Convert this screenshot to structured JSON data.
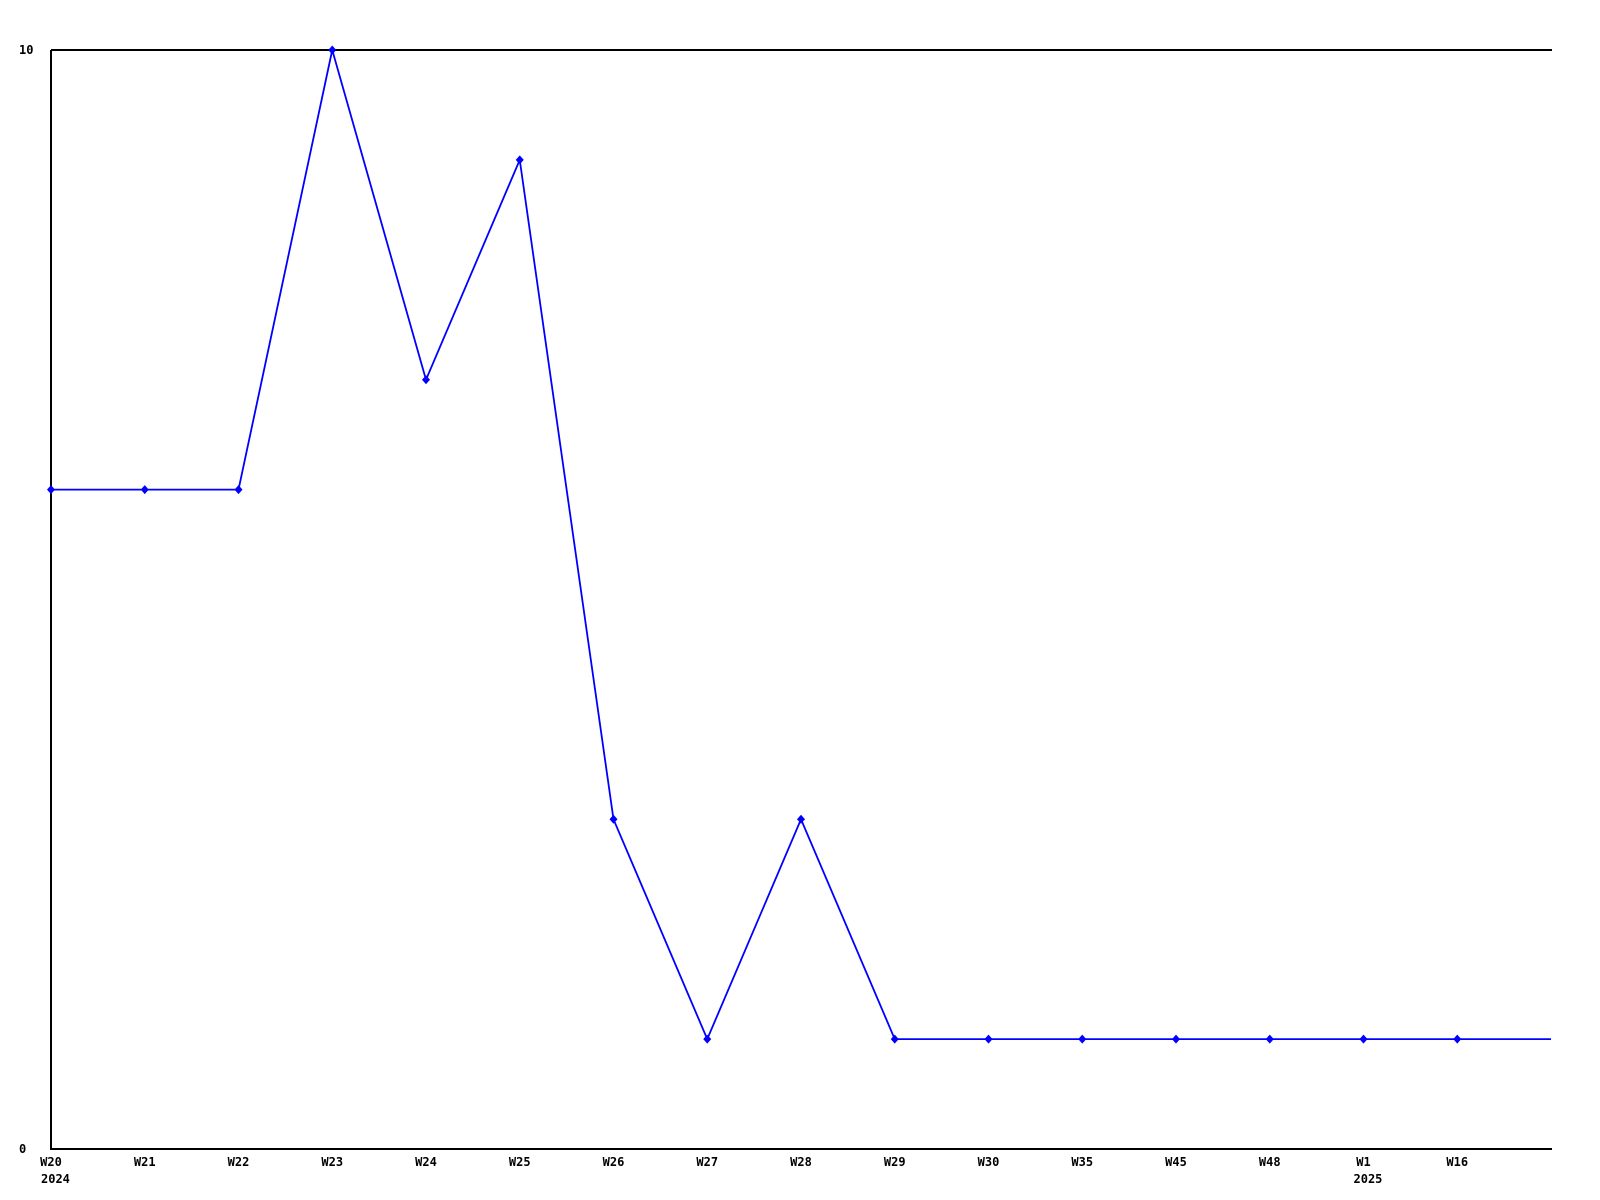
{
  "chart_data": {
    "type": "line",
    "title": "",
    "x_axis": {
      "categories": [
        "W20",
        "W21",
        "W22",
        "W23",
        "W24",
        "W25",
        "W26",
        "W27",
        "W28",
        "W29",
        "W30",
        "W35",
        "W45",
        "W48",
        "W1",
        "W16",
        ""
      ],
      "year_labels": [
        {
          "index": 0,
          "text": "2024"
        },
        {
          "index": 14,
          "text": "2025"
        }
      ]
    },
    "y_axis": {
      "min": 0,
      "max": 10,
      "tick_labels": [
        {
          "value": 0,
          "text": "0"
        },
        {
          "value": 10,
          "text": "10"
        }
      ]
    },
    "series": [
      {
        "name": "weekly-values",
        "color": "#0000ff",
        "marker": "diamond",
        "values": [
          6,
          6,
          6,
          10,
          7,
          9,
          3,
          1,
          3,
          1,
          1,
          1,
          1,
          1,
          1,
          1,
          1
        ]
      }
    ],
    "layout_hints": {
      "grid": false,
      "legend": "none",
      "border": "top-left-bottom",
      "xlim_points": 17,
      "ylim": [
        0,
        10
      ]
    }
  },
  "colors": {
    "background": "#ffffff",
    "axis": "#000000",
    "text": "#000000",
    "line": "#0000ff"
  }
}
